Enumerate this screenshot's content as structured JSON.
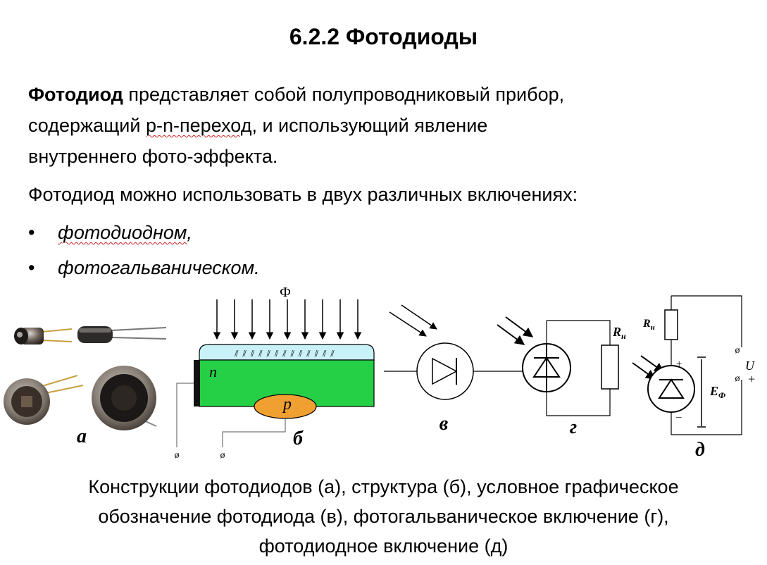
{
  "title": "6.2.2 Фотодиоды",
  "definition": {
    "term": "Фотодиод",
    "line1_rest": " представляет собой полупроводниковый прибор,",
    "line2_a": "содержащий ",
    "line2_pn": "p-n-переход",
    "line2_b": ", и использующий явление",
    "line3": "внутреннего фото-эффекта."
  },
  "usage_intro": "Фотодиод можно использовать в двух различных включениях:",
  "bullets": [
    "фотодиодном",
    "фотогальваническом."
  ],
  "bullet_suffix": [
    ",",
    ""
  ],
  "figure": {
    "flux_label": "Ф",
    "n_label": "n",
    "p_label": "p",
    "rh_label": "R",
    "rh_sub": "н",
    "e_label": "E",
    "e_sub": "Ф",
    "u_label": "U",
    "plus": "+",
    "minus": "–",
    "terminal": "ø",
    "panel_labels": [
      "а",
      "б",
      "в",
      "г",
      "д"
    ]
  },
  "caption": {
    "line1": "Конструкции фотодиодов (а), структура (б), условное графическое",
    "line2": "обозначение фотодиода (в), фотогальваническое включение (г),",
    "line3": "фотодиодное включение (д)"
  },
  "colors": {
    "lens": "#c8f2f8",
    "n_region": "#26d046",
    "p_region": "#f0a030",
    "spell_underline": "#d02020"
  }
}
